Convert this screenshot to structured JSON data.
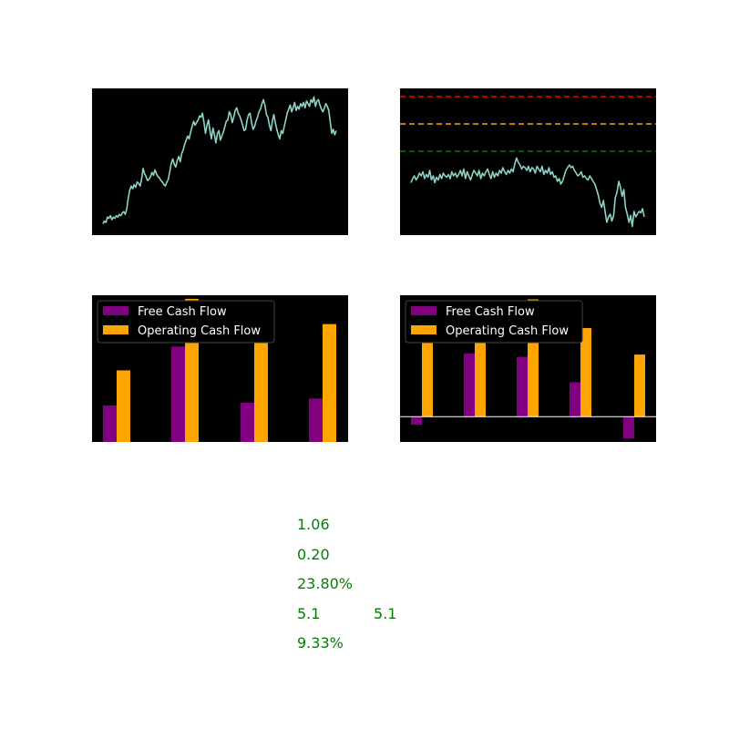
{
  "colors": {
    "panel_bg": "#000000",
    "page_bg": "#ffffff",
    "price_line": "#8dd3c7",
    "free_cash_flow": "#800080",
    "operating_cash_flow": "#ffa500",
    "metric_text": "#008000",
    "level_red": "#ff0000",
    "level_orange": "#ffa500",
    "level_green": "#008000"
  },
  "chart_data": [
    {
      "id": "price",
      "type": "line",
      "axes_visible": false,
      "ylim": [
        0,
        100
      ],
      "series": [
        {
          "color": "#8dd3c7",
          "values": [
            3,
            5,
            4,
            8,
            7,
            9,
            6,
            8,
            7,
            9,
            8,
            10,
            9,
            11,
            12,
            10,
            14,
            22,
            28,
            31,
            29,
            32,
            30,
            34,
            33,
            31,
            36,
            44,
            40,
            38,
            35,
            36,
            38,
            41,
            39,
            43,
            40,
            38,
            37,
            35,
            34,
            32,
            31,
            34,
            36,
            42,
            48,
            51,
            47,
            45,
            50,
            53,
            49,
            55,
            58,
            62,
            65,
            68,
            66,
            71,
            75,
            79,
            76,
            78,
            80,
            83,
            82,
            85,
            78,
            70,
            76,
            80,
            72,
            66,
            74,
            69,
            63,
            70,
            72,
            65,
            68,
            71,
            75,
            79,
            80,
            86,
            84,
            78,
            82,
            87,
            89,
            85,
            83,
            80,
            76,
            72,
            73,
            80,
            84,
            85,
            78,
            73,
            75,
            79,
            82,
            86,
            88,
            92,
            95,
            91,
            84,
            82,
            76,
            72,
            79,
            84,
            78,
            73,
            69,
            66,
            72,
            70,
            75,
            80,
            85,
            88,
            91,
            86,
            89,
            93,
            87,
            90,
            88,
            92,
            90,
            93,
            89,
            94,
            92,
            90,
            95,
            93,
            97,
            90,
            94,
            95,
            91,
            88,
            86,
            89,
            92,
            90,
            87,
            78,
            70,
            73,
            69,
            72
          ]
        }
      ]
    },
    {
      "id": "valuation",
      "type": "line",
      "axes_visible": false,
      "ylim": [
        0,
        100
      ],
      "reference_lines": [
        {
          "y": 96,
          "color": "#ff0000",
          "style": "dashed"
        },
        {
          "y": 76,
          "color": "#ffa500",
          "style": "dashed"
        },
        {
          "y": 56,
          "color": "#008000",
          "style": "dashed"
        }
      ],
      "series": [
        {
          "color": "#8dd3c7",
          "values": [
            33,
            36,
            38,
            35,
            37,
            40,
            38,
            41,
            36,
            39,
            37,
            42,
            35,
            38,
            33,
            37,
            35,
            39,
            36,
            40,
            38,
            37,
            39,
            36,
            41,
            38,
            40,
            37,
            39,
            42,
            38,
            43,
            36,
            41,
            38,
            35,
            39,
            42,
            40,
            38,
            42,
            36,
            40,
            38,
            41,
            43,
            39,
            36,
            41,
            37,
            40,
            38,
            42,
            40,
            44,
            41,
            39,
            42,
            40,
            43,
            41,
            47,
            51,
            48,
            46,
            43,
            45,
            44,
            42,
            45,
            41,
            44,
            43,
            40,
            45,
            43,
            41,
            45,
            39,
            42,
            40,
            44,
            39,
            41,
            37,
            38,
            34,
            36,
            32,
            34,
            38,
            42,
            44,
            46,
            44,
            45,
            42,
            40,
            38,
            39,
            41,
            37,
            38,
            36,
            35,
            38,
            36,
            34,
            32,
            28,
            24,
            18,
            15,
            20,
            12,
            4,
            8,
            10,
            5,
            9,
            22,
            26,
            34,
            30,
            23,
            28,
            15,
            10,
            4,
            9,
            1,
            12,
            8,
            10,
            12,
            11,
            14,
            8
          ]
        }
      ]
    },
    {
      "id": "cashflow-1",
      "type": "bar",
      "axes_visible": false,
      "categories": [
        "",
        "",
        "",
        ""
      ],
      "ylim": [
        0,
        10
      ],
      "legend": {
        "position": "upper-left"
      },
      "series": [
        {
          "name": "Free Cash Flow",
          "color": "#800080",
          "values": [
            2.6,
            6.8,
            2.8,
            3.1
          ]
        },
        {
          "name": "Operating Cash Flow",
          "color": "#ffa500",
          "values": [
            5.1,
            10.2,
            7.8,
            8.4
          ]
        }
      ]
    },
    {
      "id": "cashflow-2",
      "type": "bar",
      "axes_visible": false,
      "categories": [
        "",
        "",
        "",
        "",
        ""
      ],
      "ylim": [
        -2.2,
        10
      ],
      "zero_line": true,
      "legend": {
        "position": "upper-left"
      },
      "series": [
        {
          "name": "Free Cash Flow",
          "color": "#800080",
          "values": [
            -0.7,
            5.5,
            5.2,
            3.0,
            -1.9
          ]
        },
        {
          "name": "Operating Cash Flow",
          "color": "#ffa500",
          "values": [
            7.0,
            9.5,
            10.2,
            7.7,
            5.4
          ]
        }
      ]
    }
  ],
  "metrics": {
    "m1": "1.06",
    "m2": "0.20",
    "m3": "23.80%",
    "m4a": "5.1",
    "m4b": "5.1",
    "m5": "9.33%"
  }
}
